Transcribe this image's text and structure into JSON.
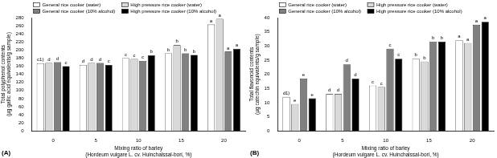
{
  "chart_data": [
    {
      "type": "bar",
      "panel": "(A)",
      "y_label": [
        "Total polyphenol contents",
        "(µg gallic acid equivalents/g sample)"
      ],
      "x_label": [
        "Mixing ratio of barley",
        "(Hordeum vulgare L. cv. Huinchalssal-bori, %)"
      ],
      "categories": [
        "0",
        "5",
        "10",
        "15",
        "20"
      ],
      "series": [
        {
          "name": "General rice cooker (water)",
          "color": "#ffffff",
          "values": [
            167,
            163,
            180,
            192,
            263
          ],
          "letters": [
            "c1)",
            "d",
            "c",
            "b",
            "a"
          ]
        },
        {
          "name": "High pressure rice cooker (water)",
          "color": "#d9d9d9",
          "values": [
            168,
            168,
            178,
            212,
            277
          ],
          "letters": [
            "d",
            "d",
            "c",
            "b",
            "a"
          ]
        },
        {
          "name": "General rice cooker (10% alcohol)",
          "color": "#808080",
          "values": [
            170,
            168,
            173,
            192,
            196
          ],
          "letters": [
            "d",
            "d",
            "c",
            "b",
            "a"
          ]
        },
        {
          "name": "High pressure rice cooker (10% alcohol)",
          "color": "#000000",
          "values": [
            160,
            163,
            187,
            188,
            203
          ],
          "letters": [
            "c",
            "c",
            "b",
            "b",
            "a"
          ]
        }
      ],
      "ylim": [
        0,
        280
      ],
      "yticks": [
        0,
        20,
        40,
        60,
        80,
        100,
        120,
        140,
        160,
        180,
        200,
        220,
        240,
        260,
        280
      ],
      "grid": false,
      "legend": "top"
    },
    {
      "type": "bar",
      "panel": "(B)",
      "y_label": [
        "Total flavonoid contents",
        "(µg catechin equivalents/g sample)"
      ],
      "x_label": [
        "Mixing ratio of barley",
        "(Hordeum vulgare L. cv. Huinchalssal-bori, %)"
      ],
      "categories": [
        "0",
        "5",
        "10",
        "15",
        "20"
      ],
      "series": [
        {
          "name": "General rice cooker (water)",
          "color": "#ffffff",
          "values": [
            12,
            13,
            16,
            25.5,
            32
          ],
          "letters": [
            "d1)",
            "d",
            "c",
            "b",
            "a"
          ]
        },
        {
          "name": "High pressure rice cooker (water)",
          "color": "#d9d9d9",
          "values": [
            9.5,
            13,
            15.5,
            24.5,
            31
          ],
          "letters": [
            "e",
            "d",
            "c",
            "b",
            "a"
          ]
        },
        {
          "name": "General rice cooker (10% alcohol)",
          "color": "#808080",
          "values": [
            18.5,
            23.5,
            29,
            31.5,
            37.5
          ],
          "letters": [
            "e",
            "d",
            "c",
            "b",
            "a"
          ]
        },
        {
          "name": "High pressure rice cooker (10% alcohol)",
          "color": "#000000",
          "values": [
            11.5,
            18.5,
            25.5,
            31.5,
            38.5
          ],
          "letters": [
            "e",
            "d",
            "c",
            "b",
            "a"
          ]
        }
      ],
      "ylim": [
        0,
        40
      ],
      "yticks": [
        0,
        5,
        10,
        15,
        20,
        25,
        30,
        35,
        40
      ],
      "grid": false,
      "legend": "top"
    }
  ]
}
